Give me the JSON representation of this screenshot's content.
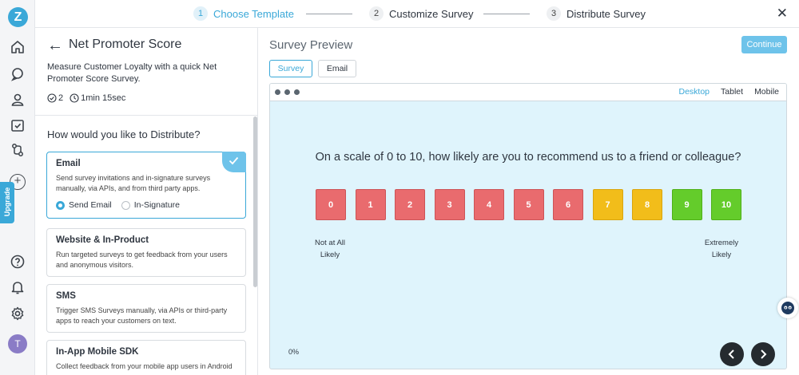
{
  "app": {
    "logo_letter": "Z",
    "upgrade_label": "Upgrade",
    "avatar_initial": "T"
  },
  "steps": [
    {
      "num": "1",
      "label": "Choose Template"
    },
    {
      "num": "2",
      "label": "Customize Survey"
    },
    {
      "num": "3",
      "label": "Distribute Survey"
    }
  ],
  "close_label": "✕",
  "left": {
    "back_label": "←",
    "title": "Net Promoter Score",
    "description": "Measure Customer Loyalty with a quick Net Promoter Score Survey.",
    "questions_count": "2",
    "duration": "1min 15sec",
    "distribute_heading": "How would you like to Distribute?",
    "cards": [
      {
        "title": "Email",
        "desc": "Send survey invitations and in-signature surveys manually, via APIs, and from third party apps.",
        "options": [
          "Send Email",
          "In-Signature"
        ]
      },
      {
        "title": "Website & In-Product",
        "desc": "Run targeted surveys to get feedback from your users and anonymous visitors."
      },
      {
        "title": "SMS",
        "desc": "Trigger SMS Surveys manually, via APIs or third-party apps to reach your customers on text."
      },
      {
        "title": "In-App Mobile SDK",
        "desc": "Collect feedback from your mobile app users in Android"
      }
    ]
  },
  "preview": {
    "title": "Survey Preview",
    "continue_label": "Continue",
    "tabs": [
      "Survey",
      "Email"
    ],
    "devices": [
      "Desktop",
      "Tablet",
      "Mobile"
    ],
    "question": "On a scale of 0 to 10, how likely are you to recommend us to a friend or colleague?",
    "scale": [
      "0",
      "1",
      "2",
      "3",
      "4",
      "5",
      "6",
      "7",
      "8",
      "9",
      "10"
    ],
    "low_label": "Not at All Likely",
    "high_label": "Extremely Likely",
    "progress": "0%"
  },
  "colors": {
    "accent": "#3aa8d8",
    "detractor": "#e96b6e",
    "passive": "#f2bd1a",
    "promoter": "#64cc2b"
  }
}
